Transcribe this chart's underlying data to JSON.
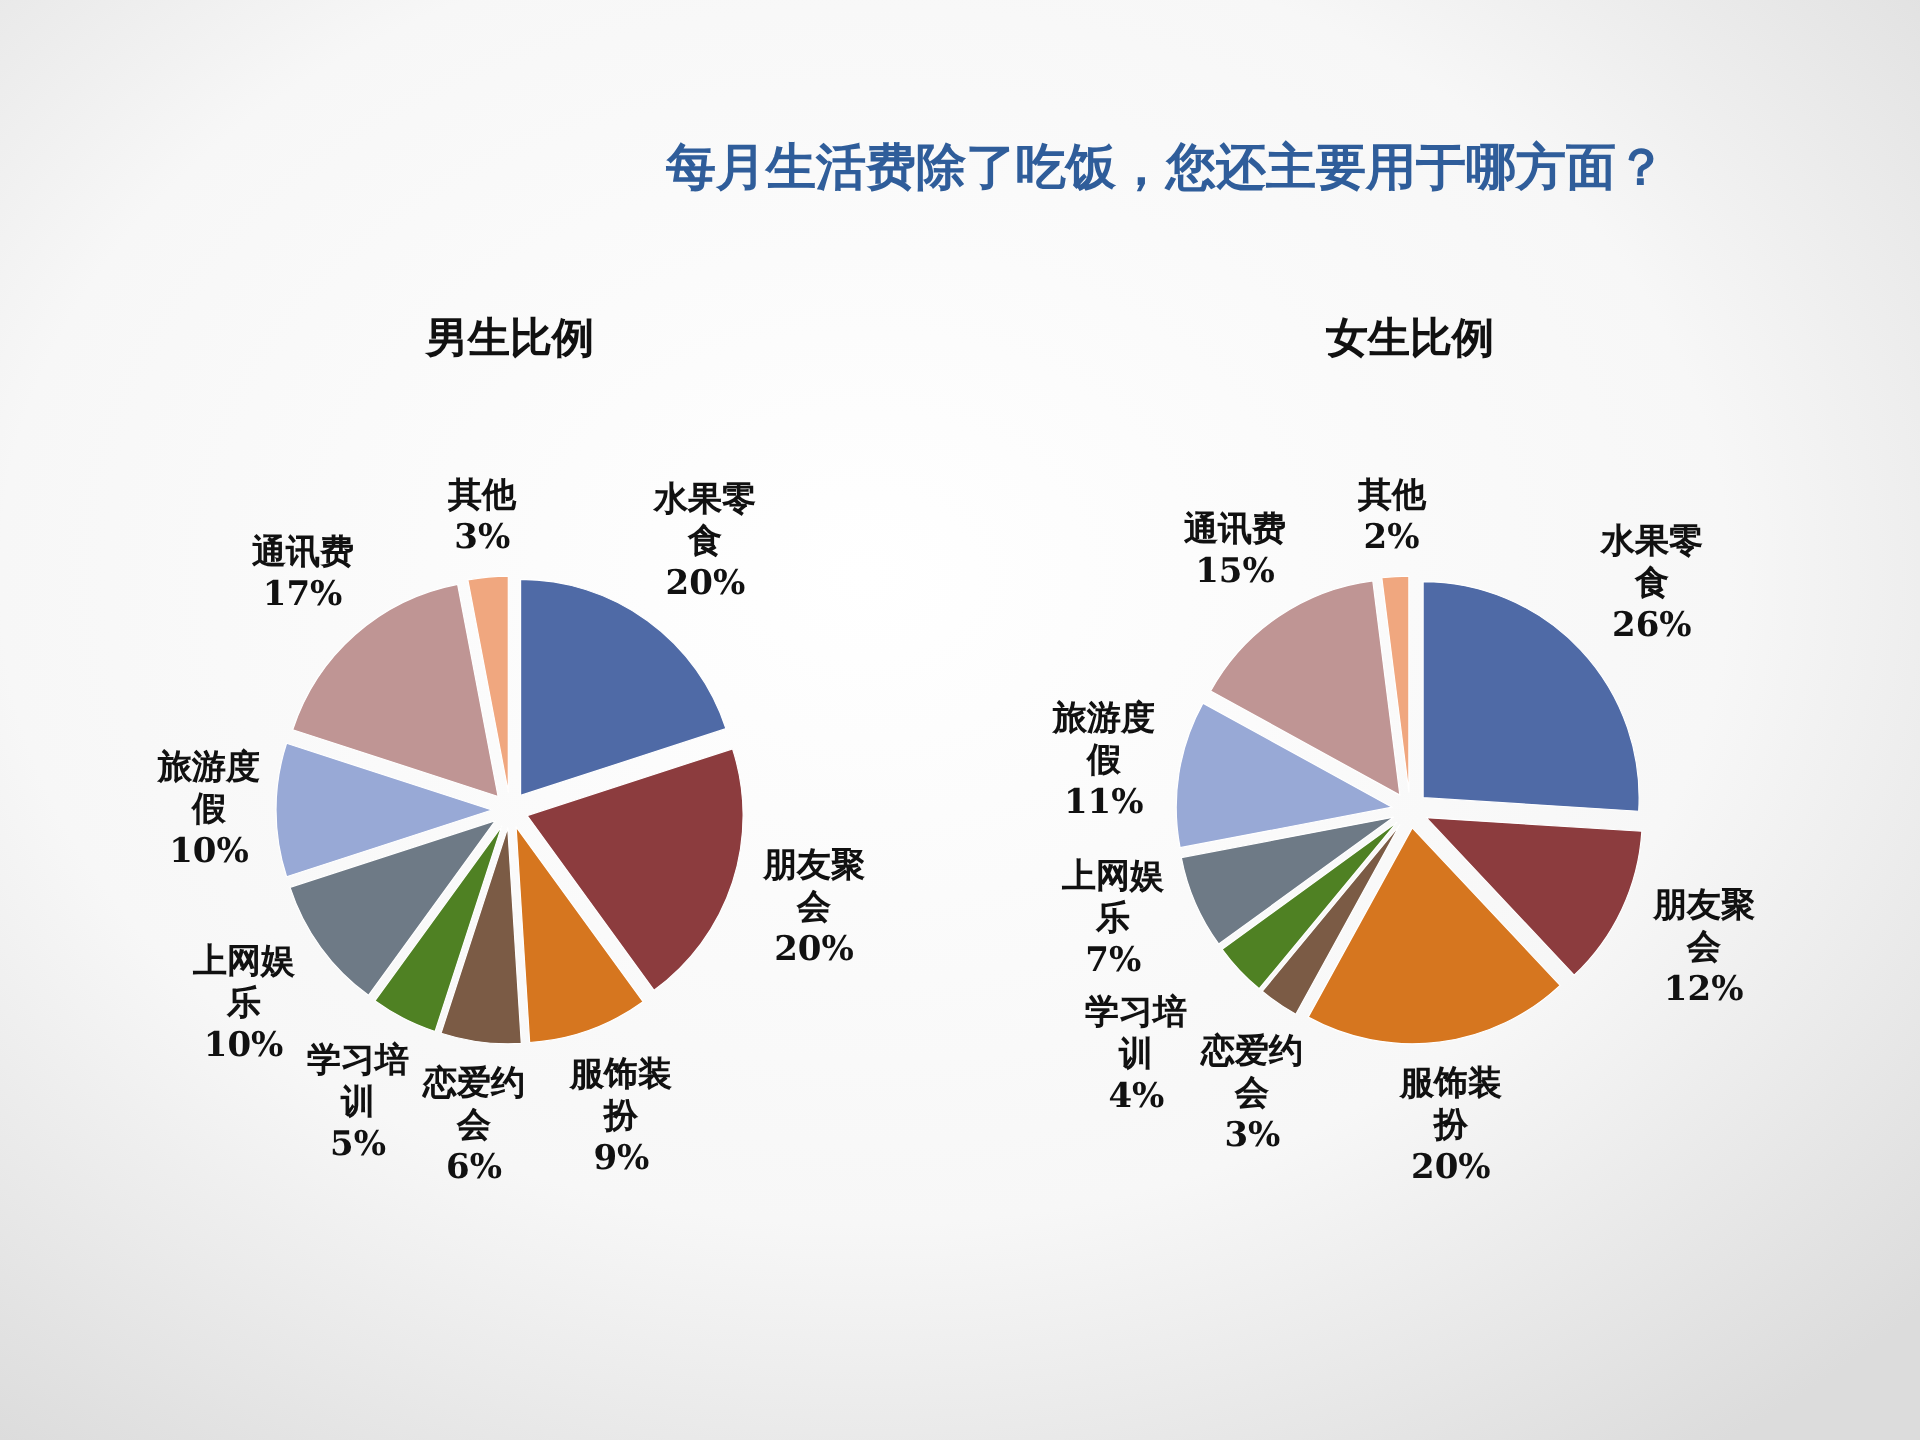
{
  "chart_data": [
    {
      "type": "pie",
      "title": "每月生活费除了吃饭，您还主要用于哪方面？",
      "subtitle": "男生比例",
      "categories": [
        "水果零食",
        "朋友聚会",
        "服饰装扮",
        "恋爱约会",
        "学习培训",
        "上网娱乐",
        "旅游度假",
        "通讯费",
        "其他"
      ],
      "values": [
        20,
        20,
        9,
        6,
        5,
        10,
        10,
        17,
        3
      ],
      "value_labels": [
        "20%",
        "20%",
        "9%",
        "6%",
        "5%",
        "10%",
        "10%",
        "17%",
        "3%"
      ],
      "colors": [
        "#4f6aa6",
        "#8c3c3e",
        "#d6761f",
        "#7b5b45",
        "#4f8123",
        "#6e7a86",
        "#98a9d6",
        "#bf9594",
        "#f0a77f"
      ]
    },
    {
      "type": "pie",
      "subtitle": "女生比例",
      "categories": [
        "水果零食",
        "朋友聚会",
        "服饰装扮",
        "恋爱约会",
        "学习培训",
        "上网娱乐",
        "旅游度假",
        "通讯费",
        "其他"
      ],
      "values": [
        26,
        12,
        20,
        3,
        4,
        7,
        11,
        15,
        2
      ],
      "value_labels": [
        "26%",
        "12%",
        "20%",
        "3%",
        "4%",
        "7%",
        "11%",
        "15%",
        "2%"
      ],
      "colors": [
        "#4f6aa6",
        "#8c3c3e",
        "#d6761f",
        "#7b5b45",
        "#4f8123",
        "#6e7a86",
        "#98a9d6",
        "#bf9594",
        "#f0a77f"
      ]
    }
  ]
}
